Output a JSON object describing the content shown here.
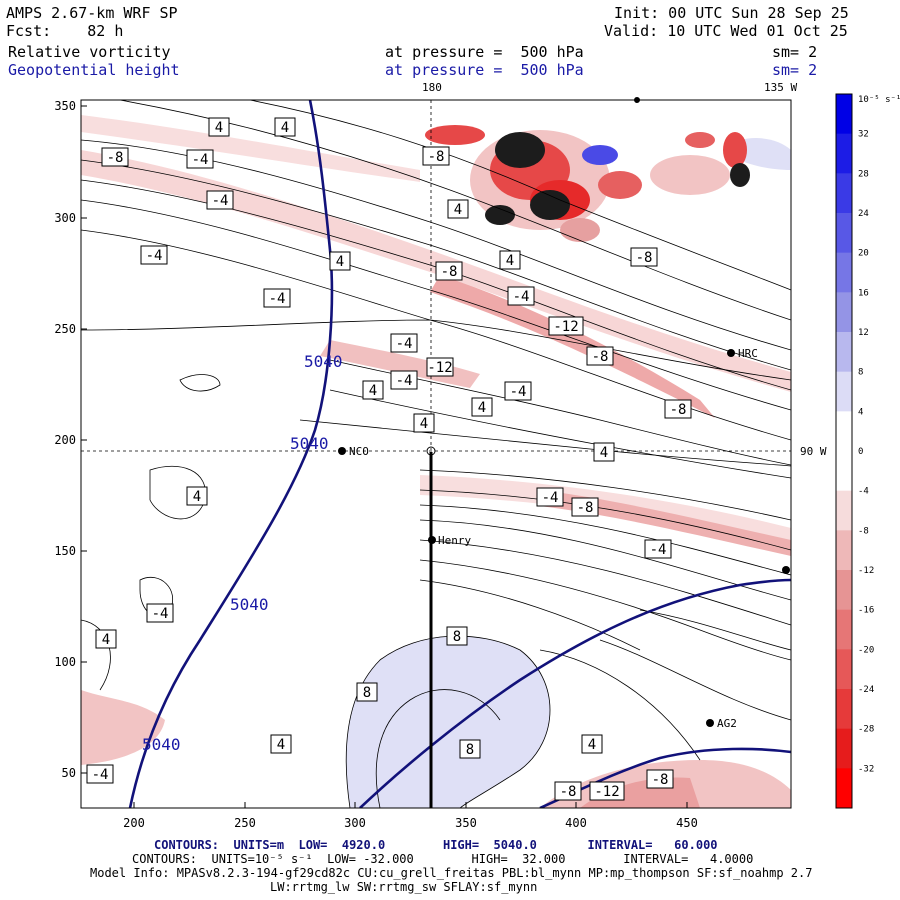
{
  "header": {
    "title": "AMPS 2.67-km WRF SP",
    "forecast": "Fcst:    82 h",
    "init": "Init: 00 UTC Sun 28 Sep 25",
    "valid": "Valid: 10 UTC Wed 01 Oct 25",
    "var1_name": "Relative vorticity",
    "var1_level": "at pressure =  500 hPa",
    "var1_smooth": "sm= 2",
    "var2_name": "Geopotential height",
    "var2_level": "at pressure =  500 hPa",
    "var2_smooth": "sm= 2"
  },
  "map": {
    "lon_label_180": "180",
    "lon_label_135w": "135 W",
    "lon_label_90w": "90 W",
    "x_ticks": [
      "200",
      "250",
      "300",
      "350",
      "400",
      "450"
    ],
    "y_ticks": [
      "350",
      "300",
      "250",
      "200",
      "150",
      "100",
      "50"
    ],
    "stations": [
      {
        "name": "NCO"
      },
      {
        "name": "Henry"
      },
      {
        "name": "HRC"
      },
      {
        "name": "AG2"
      }
    ],
    "height_labels": [
      "5040",
      "5040",
      "5040",
      "5040"
    ],
    "vort_labels": [
      "-8",
      "-4",
      "-4",
      "-4",
      "-4",
      "4",
      "4",
      "4",
      "4",
      "-8",
      "-12",
      "-8",
      "-8",
      "4",
      "-4",
      "-8",
      "-4",
      "-4",
      "-12",
      "-8",
      "4",
      "4",
      "4",
      "-4",
      "-8",
      "-4",
      "-4",
      "8",
      "8",
      "8",
      "4",
      "4",
      "-8",
      "-12",
      "-8",
      "-4",
      "4",
      "4",
      "-4",
      "4"
    ]
  },
  "colorbar": {
    "unit_label": "10⁻⁵ s⁻¹",
    "ticks": [
      "32",
      "28",
      "24",
      "20",
      "16",
      "12",
      "8",
      "4",
      "0",
      "-4",
      "-8",
      "-12",
      "-16",
      "-20",
      "-24",
      "-28",
      "-32"
    ],
    "colors": [
      "#0000e6",
      "#1c1ce6",
      "#3a3ae6",
      "#5858e6",
      "#7676e6",
      "#9494e6",
      "#b8b8ee",
      "#dcdcf6",
      "#ffffff",
      "#ffffff",
      "#f6dcdc",
      "#eeb8b8",
      "#e69494",
      "#e67676",
      "#e65858",
      "#e63a3a",
      "#e61c1c",
      "#ff0000"
    ]
  },
  "footer": {
    "line1": "CONTOURS:  UNITS=m  LOW=  4920.0        HIGH=  5040.0       INTERVAL=   60.000",
    "line2": "CONTOURS:  UNITS=10⁻⁵ s⁻¹  LOW= -32.000        HIGH=  32.000        INTERVAL=   4.0000",
    "line3": "Model Info: MPASv8.2.3-194-gf29cd82c CU:cu_grell_freitas PBL:bl_mynn MP:mp_thompson SF:sf_noahmp 2.7",
    "line4": "LW:rrtmg_lw SW:rrtmg_sw SFLAY:sf_mynn"
  }
}
